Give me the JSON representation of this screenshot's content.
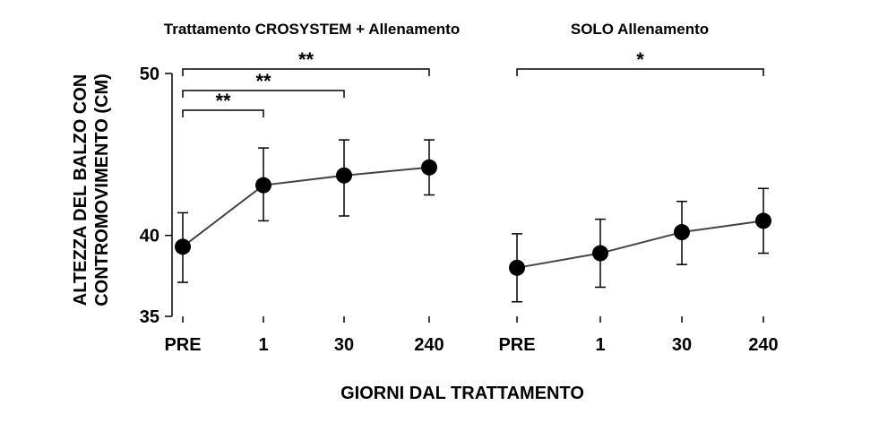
{
  "chart_data": [
    {
      "type": "line",
      "title": "Trattamento CROSYSTEM + Allenamento",
      "xlabel": "GIORNI DAL TRATTAMENTO",
      "ylabel": "ALTEZZA DEL BALZO CON CONTROMOVIMENTO (CM)",
      "categories": [
        "PRE",
        "1",
        "30",
        "240"
      ],
      "yticks": [
        35,
        40,
        50
      ],
      "ylim": [
        35,
        50
      ],
      "series": [
        {
          "values": [
            39.3,
            43.1,
            43.7,
            44.2
          ],
          "err_upper": [
            41.4,
            45.4,
            45.9,
            45.9
          ],
          "err_lower": [
            37.1,
            40.9,
            41.2,
            42.5
          ]
        }
      ],
      "significance": [
        {
          "from": "PRE",
          "to": "1",
          "label": "**"
        },
        {
          "from": "PRE",
          "to": "30",
          "label": "**"
        },
        {
          "from": "PRE",
          "to": "240",
          "label": "**"
        }
      ],
      "grid": false
    },
    {
      "type": "line",
      "title": "SOLO Allenamento",
      "xlabel": "GIORNI DAL TRATTAMENTO",
      "categories": [
        "PRE",
        "1",
        "30",
        "240"
      ],
      "ylim": [
        35,
        50
      ],
      "series": [
        {
          "values": [
            38.0,
            38.9,
            40.2,
            40.9
          ],
          "err_upper": [
            40.1,
            41.0,
            42.1,
            42.9
          ],
          "err_lower": [
            35.9,
            36.8,
            38.2,
            38.9
          ]
        }
      ],
      "significance": [
        {
          "from": "PRE",
          "to": "240",
          "label": "*"
        }
      ],
      "grid": false
    }
  ],
  "colors": {
    "marker": "#000000",
    "line": "#444444",
    "axis": "#000000"
  }
}
